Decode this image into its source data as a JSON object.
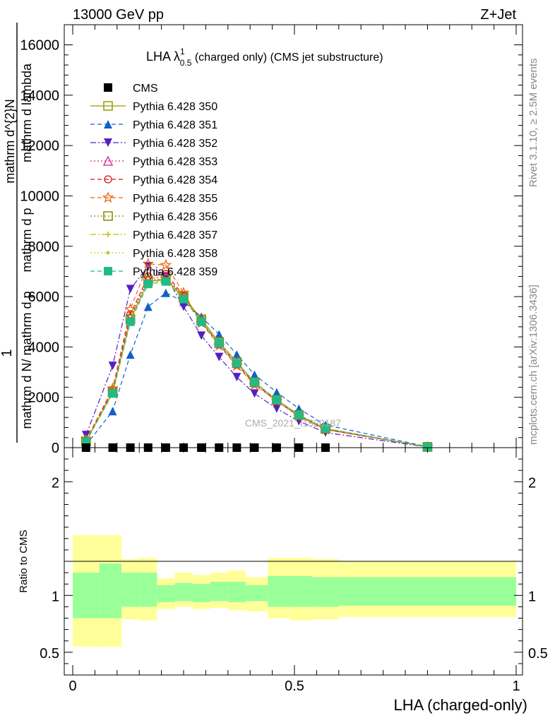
{
  "header": {
    "left": "13000 GeV pp",
    "right": "Z+Jet",
    "title_main": "LHA λ",
    "title_sup": "1",
    "title_sub": "0.5",
    "title_rest": " (charged only) (CMS jet substructure)",
    "side_rivet": "Rivet 3.1.10, ≥ 2.5M events",
    "side_mcplots": "mcplots.cern.ch [arXiv:1306.3436]",
    "watermark": "CMS_2021_I1920187"
  },
  "chart_data": [
    {
      "type": "line",
      "panel": "main",
      "ylabel_parts": [
        "1",
        "mathrm d N / mathrm d p_T mathrm d lambda",
        "mathrm d N",
        "mathrm d p_T mathrm d lambda"
      ],
      "ylabel_lines": [
        "1",
        "mathrm d N/ mathrm d p",
        "mathrm d^{2}N",
        "mathrm d p",
        "mathrm d lambda"
      ],
      "ylim": [
        0,
        16800
      ],
      "xlim": [
        0,
        1
      ],
      "yticks": [
        0,
        2000,
        4000,
        6000,
        8000,
        10000,
        12000,
        14000,
        16000
      ],
      "ytick_labels": [
        "0",
        "2000",
        "4000",
        "6000",
        "8000",
        "10000",
        "12000",
        "14000",
        "16000"
      ],
      "x": [
        0.03,
        0.09,
        0.13,
        0.17,
        0.21,
        0.25,
        0.29,
        0.33,
        0.37,
        0.41,
        0.46,
        0.51,
        0.57,
        0.8
      ],
      "series": [
        {
          "name": "CMS",
          "color": "#000000",
          "marker": "square-filled",
          "dash": "none",
          "values": [
            0,
            0,
            0,
            0,
            0,
            0,
            0,
            0,
            0,
            0,
            0,
            0,
            0,
            null
          ]
        },
        {
          "name": "Pythia 6.428 350",
          "color": "#999900",
          "marker": "square-open",
          "dash": "solid",
          "values": [
            250,
            2200,
            5100,
            6600,
            6700,
            6000,
            5100,
            4200,
            3400,
            2600,
            1900,
            1300,
            750,
            30
          ]
        },
        {
          "name": "Pythia 6.428 351",
          "color": "#1060c8",
          "marker": "triangle-up-filled",
          "dash": "dashed",
          "values": [
            100,
            1450,
            3700,
            5600,
            6150,
            5800,
            5200,
            4500,
            3700,
            2900,
            2200,
            1550,
            900,
            40
          ]
        },
        {
          "name": "Pythia 6.428 352",
          "color": "#5520c0",
          "marker": "triangle-down-filled",
          "dash": "dashdot",
          "values": [
            500,
            3250,
            6300,
            7200,
            6800,
            5600,
            4450,
            3600,
            2800,
            2150,
            1550,
            1050,
            600,
            25
          ]
        },
        {
          "name": "Pythia 6.428 353",
          "color": "#cc2288",
          "marker": "triangle-up-open",
          "dash": "dotted",
          "values": [
            260,
            2250,
            5200,
            6700,
            6800,
            6000,
            5050,
            4150,
            3350,
            2600,
            1900,
            1300,
            750,
            30
          ]
        },
        {
          "name": "Pythia 6.428 354",
          "color": "#dd1111",
          "marker": "circle-open",
          "dash": "dashed",
          "values": [
            270,
            2300,
            5300,
            6800,
            6900,
            6050,
            5000,
            4100,
            3300,
            2550,
            1850,
            1250,
            720,
            30
          ]
        },
        {
          "name": "Pythia 6.428 355",
          "color": "#ee6611",
          "marker": "star-open",
          "dash": "dashed",
          "values": [
            300,
            2350,
            5500,
            7300,
            7250,
            6150,
            4950,
            4050,
            3250,
            2500,
            1850,
            1250,
            720,
            30
          ]
        },
        {
          "name": "Pythia 6.428 356",
          "color": "#888800",
          "marker": "square-open",
          "dash": "dotted",
          "values": [
            250,
            2200,
            5100,
            6650,
            6700,
            5950,
            5050,
            4200,
            3400,
            2600,
            1900,
            1300,
            760,
            30
          ]
        },
        {
          "name": "Pythia 6.428 357",
          "color": "#ccbb00",
          "marker": "plus",
          "dash": "dashdot",
          "values": [
            245,
            2180,
            5050,
            6600,
            6650,
            5950,
            5050,
            4200,
            3400,
            2600,
            1900,
            1300,
            760,
            30
          ]
        },
        {
          "name": "Pythia 6.428 358",
          "color": "#bbcc22",
          "marker": "dot",
          "dash": "dotted",
          "values": [
            240,
            2170,
            5050,
            6550,
            6650,
            5950,
            5050,
            4200,
            3400,
            2600,
            1900,
            1300,
            760,
            30
          ]
        },
        {
          "name": "Pythia 6.428 359",
          "color": "#22bb88",
          "marker": "square-filled",
          "dash": "dashed",
          "values": [
            230,
            2150,
            5000,
            6500,
            6600,
            5900,
            5000,
            4150,
            3350,
            2600,
            1900,
            1300,
            760,
            30
          ]
        }
      ]
    },
    {
      "type": "area",
      "panel": "ratio",
      "ylabel": "Ratio to CMS",
      "ylim": [
        0.3,
        2.3
      ],
      "yticks_major": [
        0.5,
        1,
        2
      ],
      "ytick_labels": [
        "0.5",
        "1",
        "2"
      ],
      "xlabel": "LHA (charged-only)",
      "xticks_major": [
        0,
        0.5,
        1
      ],
      "xtick_labels": [
        "0",
        "0.5",
        "1"
      ],
      "bin_edges": [
        0,
        0.06,
        0.11,
        0.15,
        0.19,
        0.23,
        0.27,
        0.31,
        0.35,
        0.39,
        0.44,
        0.49,
        0.54,
        0.6,
        1.0
      ],
      "band_inner_lo": [
        0.8,
        0.8,
        0.9,
        0.9,
        0.94,
        0.95,
        0.94,
        0.95,
        0.94,
        0.95,
        0.9,
        0.9,
        0.9,
        0.91
      ],
      "band_inner_hi": [
        1.2,
        1.28,
        1.2,
        1.2,
        1.09,
        1.11,
        1.1,
        1.12,
        1.12,
        1.09,
        1.17,
        1.17,
        1.16,
        1.16
      ],
      "band_outer_lo": [
        0.55,
        0.55,
        0.79,
        0.78,
        0.88,
        0.9,
        0.88,
        0.89,
        0.87,
        0.86,
        0.8,
        0.78,
        0.79,
        0.81
      ],
      "band_outer_hi": [
        1.53,
        1.53,
        1.32,
        1.33,
        1.15,
        1.2,
        1.18,
        1.2,
        1.22,
        1.16,
        1.33,
        1.33,
        1.32,
        1.3
      ],
      "colors": {
        "inner": "#99ff99",
        "outer": "#ffff99",
        "reference_line": "#000000"
      }
    }
  ]
}
